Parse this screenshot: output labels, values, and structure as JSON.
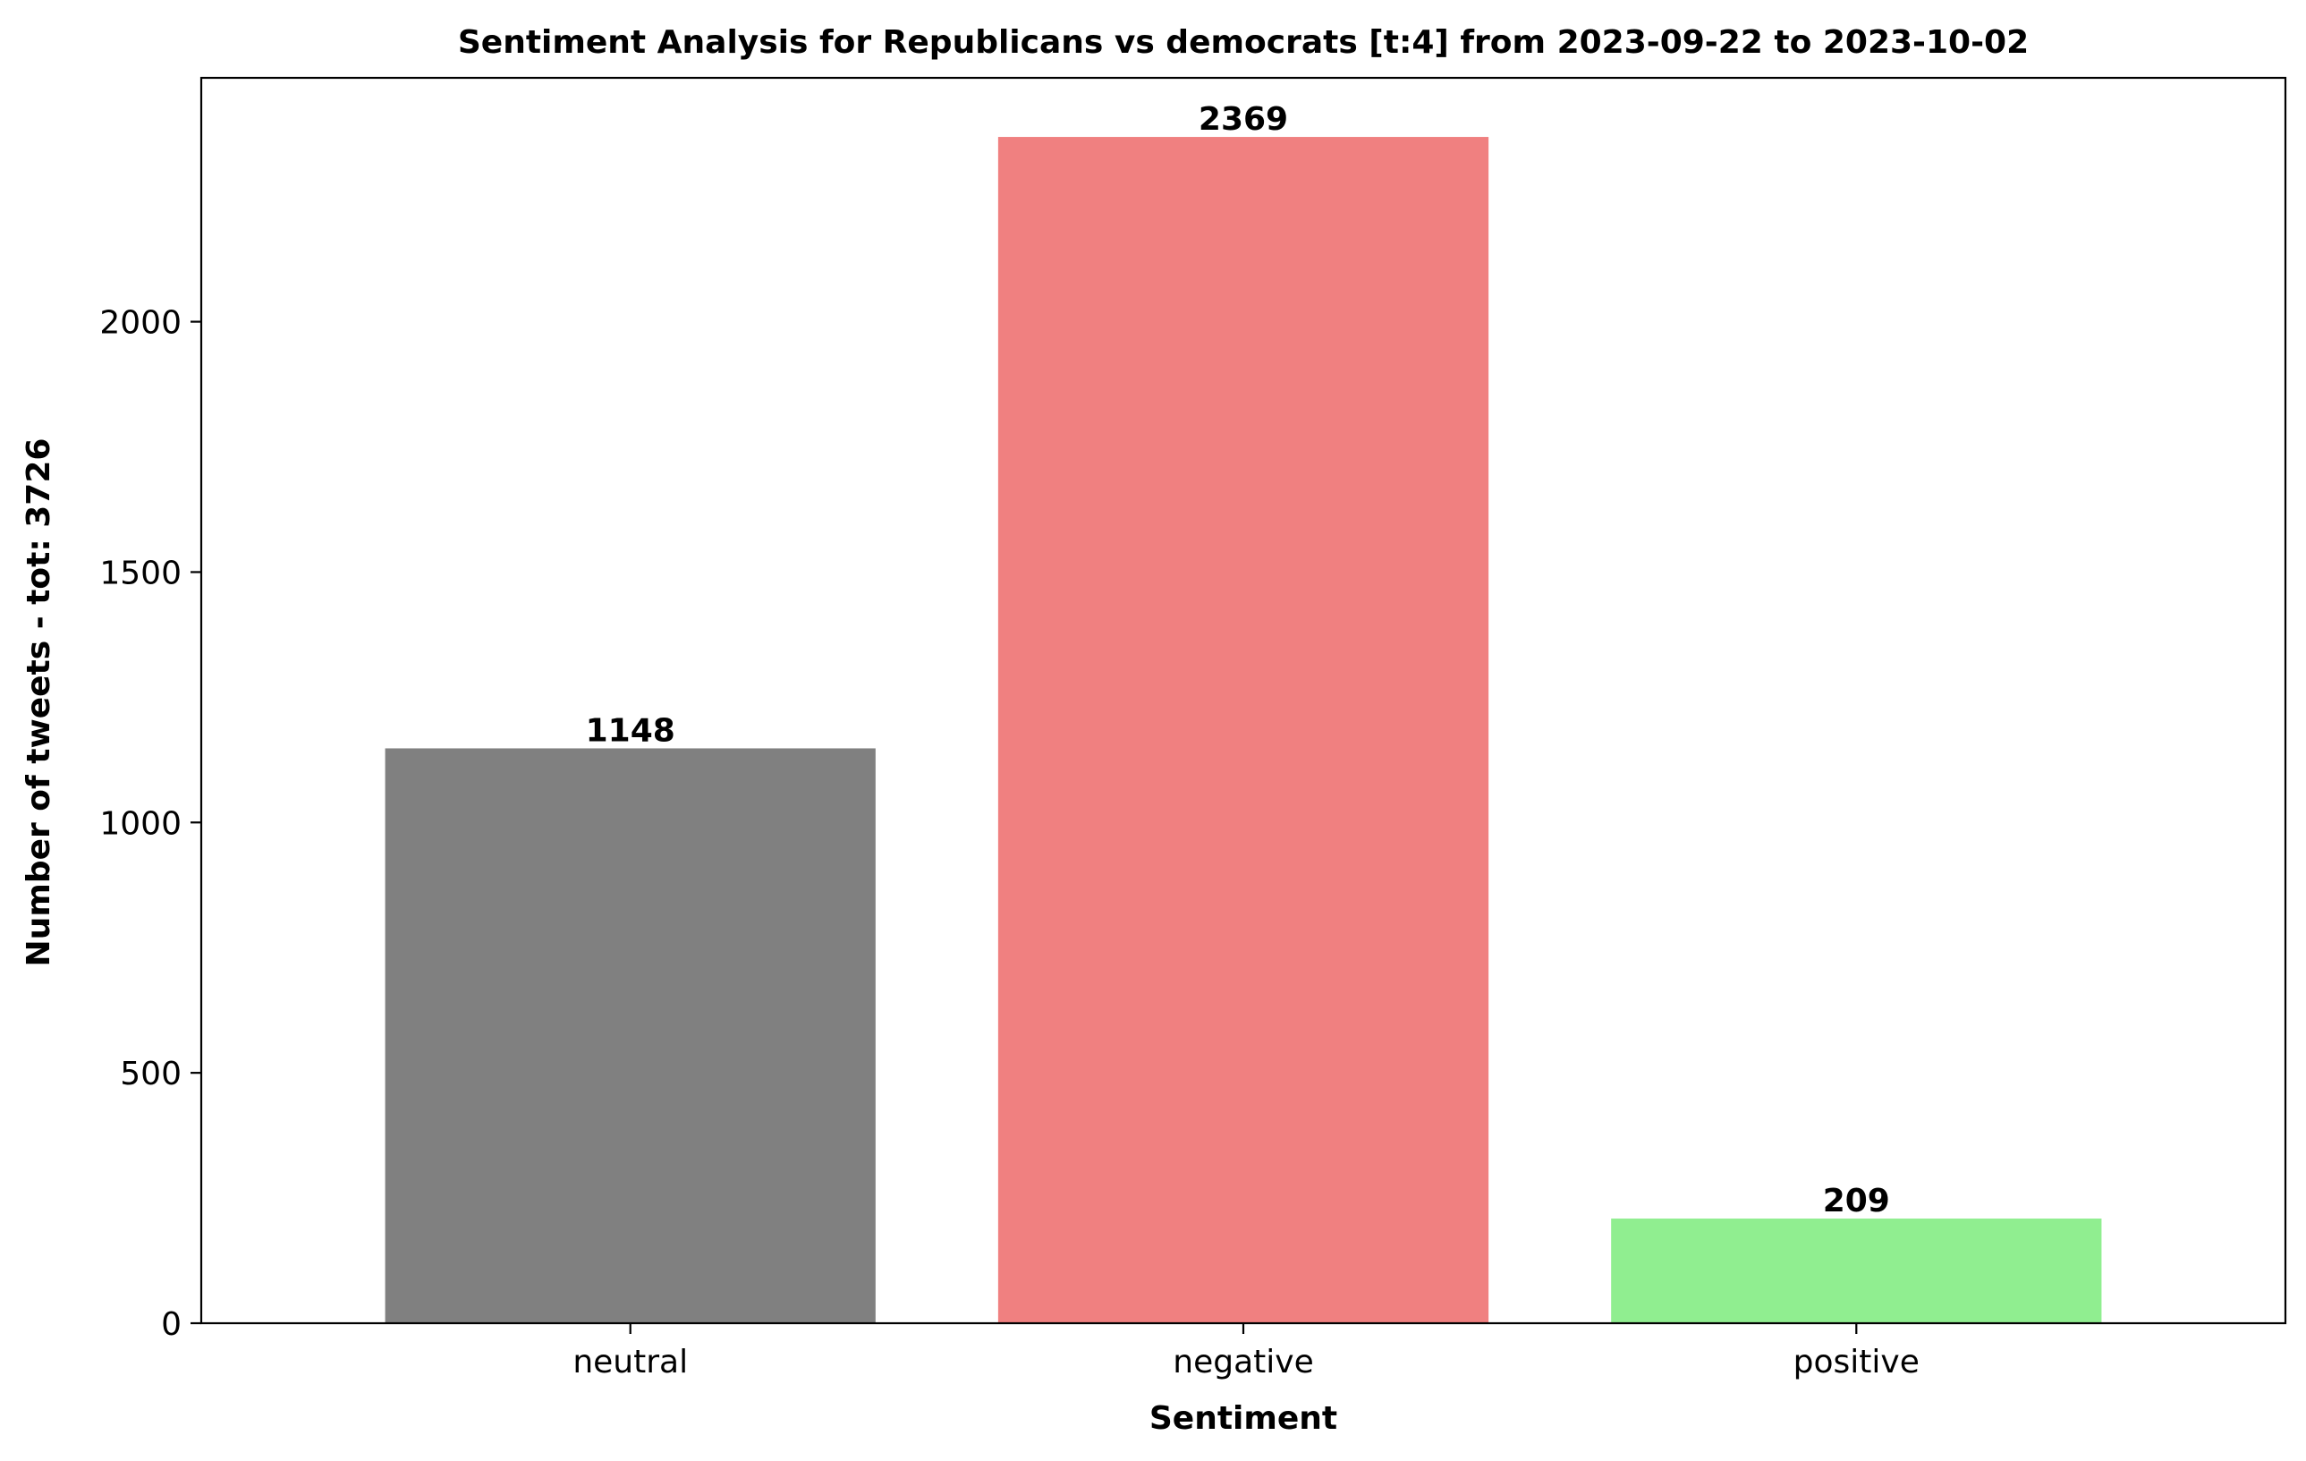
{
  "chart_data": {
    "type": "bar",
    "title": "Sentiment Analysis for Republicans vs democrats [t:4] from 2023-09-22 to 2023-10-02",
    "xlabel": "Sentiment",
    "ylabel": "Number of tweets - tot: 3726",
    "categories": [
      "neutral",
      "negative",
      "positive"
    ],
    "values": [
      1148,
      2369,
      209
    ],
    "colors": [
      "#808080",
      "#f08080",
      "#90ee90"
    ],
    "ylim": [
      0,
      2487
    ],
    "yticks": [
      0,
      500,
      1000,
      1500,
      2000
    ],
    "grid": false,
    "legend": "none"
  }
}
